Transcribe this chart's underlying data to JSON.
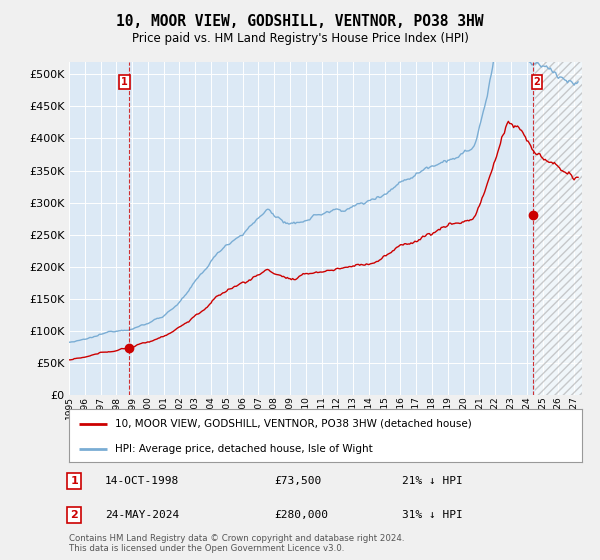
{
  "title": "10, MOOR VIEW, GODSHILL, VENTNOR, PO38 3HW",
  "subtitle": "Price paid vs. HM Land Registry's House Price Index (HPI)",
  "legend_label_red": "10, MOOR VIEW, GODSHILL, VENTNOR, PO38 3HW (detached house)",
  "legend_label_blue": "HPI: Average price, detached house, Isle of Wight",
  "annotation1_label": "1",
  "annotation1_date": "14-OCT-1998",
  "annotation1_price": "£73,500",
  "annotation1_hpi": "21% ↓ HPI",
  "annotation2_label": "2",
  "annotation2_date": "24-MAY-2024",
  "annotation2_price": "£280,000",
  "annotation2_hpi": "31% ↓ HPI",
  "copyright": "Contains HM Land Registry data © Crown copyright and database right 2024.\nThis data is licensed under the Open Government Licence v3.0.",
  "ylim": [
    0,
    520000
  ],
  "yticks": [
    0,
    50000,
    100000,
    150000,
    200000,
    250000,
    300000,
    350000,
    400000,
    450000,
    500000
  ],
  "xlim_start": 1995.0,
  "xlim_end": 2027.5,
  "background_color": "#f0f0f0",
  "plot_bg_color": "#dce9f5",
  "grid_color": "#ffffff",
  "red_color": "#cc0000",
  "blue_color": "#7aadd4",
  "sale1_x": 1998.79,
  "sale1_y": 73500,
  "sale2_x": 2024.39,
  "sale2_y": 280000,
  "hatch_start": 2024.5
}
